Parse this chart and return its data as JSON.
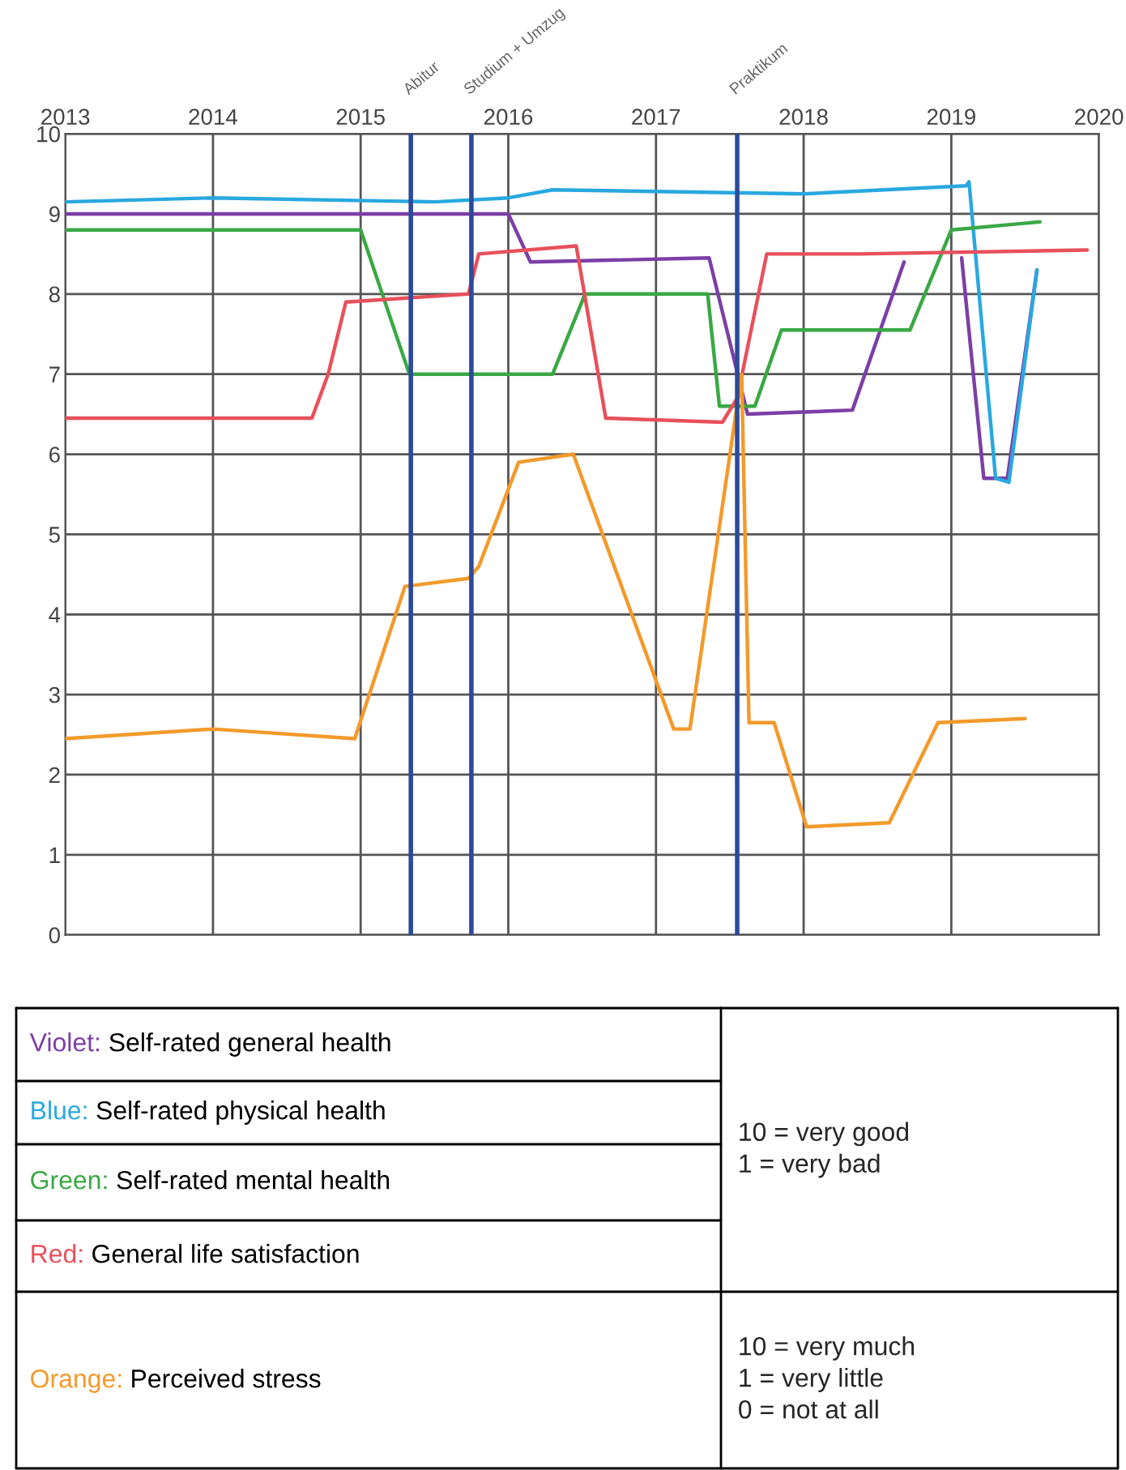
{
  "chart_data": {
    "type": "line",
    "xlim": [
      2013,
      2020
    ],
    "xticks": [
      2013,
      2014,
      2015,
      2016,
      2017,
      2018,
      2019,
      2020
    ],
    "ylim": [
      0,
      10
    ],
    "yticks": [
      0,
      1,
      2,
      3,
      4,
      5,
      6,
      7,
      8,
      9,
      10
    ],
    "grid": true,
    "line_style": "solid",
    "series": [
      {
        "name": "Violet: Self-rated general health",
        "color": "#7b3fa6",
        "x": [
          2013,
          2016.0,
          2016.15,
          2017.36,
          2017.62,
          2018.33,
          2018.68,
          2018.9,
          2019.07,
          2019.22,
          2019.38,
          2019.58
        ],
        "values": [
          9.0,
          9.0,
          8.4,
          8.45,
          6.5,
          6.55,
          8.4,
          null,
          8.45,
          5.7,
          5.7,
          8.3
        ]
      },
      {
        "name": "Blue: Self-rated physical health",
        "color": "#29a8e0",
        "x": [
          2013,
          2014,
          2015.5,
          2016,
          2016.3,
          2018,
          2019.1,
          2019.12,
          2019.3,
          2019.39,
          2019.58
        ],
        "values": [
          9.15,
          9.2,
          9.15,
          9.2,
          9.3,
          9.25,
          9.35,
          9.4,
          5.7,
          5.65,
          8.3
        ]
      },
      {
        "name": "Green: Self-rated mental health",
        "color": "#3aa845",
        "x": [
          2013,
          2015.0,
          2015.33,
          2016.3,
          2016.52,
          2017.35,
          2017.43,
          2017.67,
          2017.85,
          2018.72,
          2019.0,
          2019.6
        ],
        "values": [
          8.8,
          8.8,
          7.0,
          7.0,
          8.0,
          8.0,
          6.6,
          6.6,
          7.55,
          7.55,
          8.8,
          8.9
        ]
      },
      {
        "name": "Red: General life satisfaction",
        "color": "#e8505b",
        "x": [
          2013,
          2014.67,
          2014.78,
          2014.9,
          2015.73,
          2015.8,
          2016.46,
          2016.66,
          2017.45,
          2017.55,
          2017.75,
          2018.38,
          2019.92
        ],
        "values": [
          6.45,
          6.45,
          7.0,
          7.9,
          8.0,
          8.5,
          8.6,
          6.45,
          6.4,
          6.7,
          8.5,
          8.5,
          8.55
        ]
      },
      {
        "name": "Orange: Perceived stress",
        "color": "#f39a2b",
        "x": [
          2013,
          2014,
          2014.96,
          2015.3,
          2015.73,
          2015.8,
          2016.07,
          2016.44,
          2017.12,
          2017.23,
          2017.58,
          2017.63,
          2017.8,
          2018.02,
          2018.58,
          2018.91,
          2019.5
        ],
        "values": [
          2.45,
          2.57,
          2.45,
          4.35,
          4.45,
          4.6,
          5.9,
          6.0,
          2.57,
          2.57,
          7.0,
          2.65,
          2.65,
          1.35,
          1.4,
          2.65,
          2.7
        ]
      }
    ],
    "ref_lines": [
      {
        "axis": "x",
        "value": 2015.34,
        "label": "Abitur",
        "color": "#2c4a9a"
      },
      {
        "axis": "x",
        "value": 2015.75,
        "label": "Studium + Umzug",
        "color": "#2c4a9a"
      },
      {
        "axis": "x",
        "value": 2017.55,
        "label": "Praktikum",
        "color": "#2c4a9a"
      }
    ],
    "annotations": [
      "10 = very good\n1 = very bad",
      "10 = very much\n1 = very little\n0 = not at all"
    ]
  }
}
